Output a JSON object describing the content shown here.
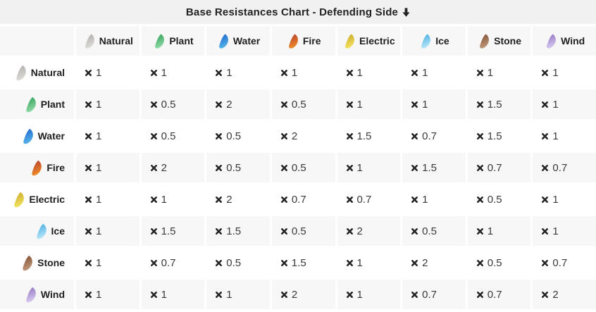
{
  "title": {
    "text": "Base Resistances Chart - Defending Side",
    "arrow_icon": "down-arrow"
  },
  "icons": {
    "multiply": "heavy-x",
    "down_arrow": "thick-down-arrow",
    "type_icon_shape": "feather-shell"
  },
  "colors": {
    "title_bg": "#f1f1f1",
    "stripe_bg": "#f7f7f7",
    "row_bg": "#ffffff",
    "label_text": "#1f1f1f",
    "value_text": "#3a3a3a",
    "icon_stroke": "#222222"
  },
  "type_colors": {
    "Natural": [
      "#aeacaa",
      "#dddbd8"
    ],
    "Plant": [
      "#2f9e57",
      "#8fd9a4"
    ],
    "Water": [
      "#1a64cc",
      "#55b2e8"
    ],
    "Fire": [
      "#b53a2e",
      "#ec8b2a"
    ],
    "Electric": [
      "#c9a82a",
      "#f2e15e"
    ],
    "Ice": [
      "#42aadf",
      "#b8e6f8"
    ],
    "Stone": [
      "#7d4c31",
      "#c0977a"
    ],
    "Wind": [
      "#8f6fc0",
      "#d5c9ee"
    ]
  },
  "chart_data": {
    "type": "table",
    "title": "Base Resistances Chart - Defending Side",
    "multiplier_symbol": "×",
    "columns": [
      "Natural",
      "Plant",
      "Water",
      "Fire",
      "Electric",
      "Ice",
      "Stone",
      "Wind"
    ],
    "row_labels": [
      "Natural",
      "Plant",
      "Water",
      "Fire",
      "Electric",
      "Ice",
      "Stone",
      "Wind"
    ],
    "values": [
      [
        1,
        1,
        1,
        1,
        1,
        1,
        1,
        1
      ],
      [
        1,
        0.5,
        2,
        0.5,
        1,
        1,
        1.5,
        1
      ],
      [
        1,
        0.5,
        0.5,
        2,
        1.5,
        0.7,
        1.5,
        1
      ],
      [
        1,
        2,
        0.5,
        0.5,
        1,
        1.5,
        0.7,
        0.7
      ],
      [
        1,
        1,
        2,
        0.7,
        0.7,
        1,
        0.5,
        1
      ],
      [
        1,
        1.5,
        1.5,
        0.5,
        2,
        0.5,
        1,
        1
      ],
      [
        1,
        0.7,
        0.5,
        1.5,
        1,
        2,
        0.5,
        0.7
      ],
      [
        1,
        1,
        1,
        2,
        1,
        0.7,
        0.7,
        2
      ]
    ]
  }
}
